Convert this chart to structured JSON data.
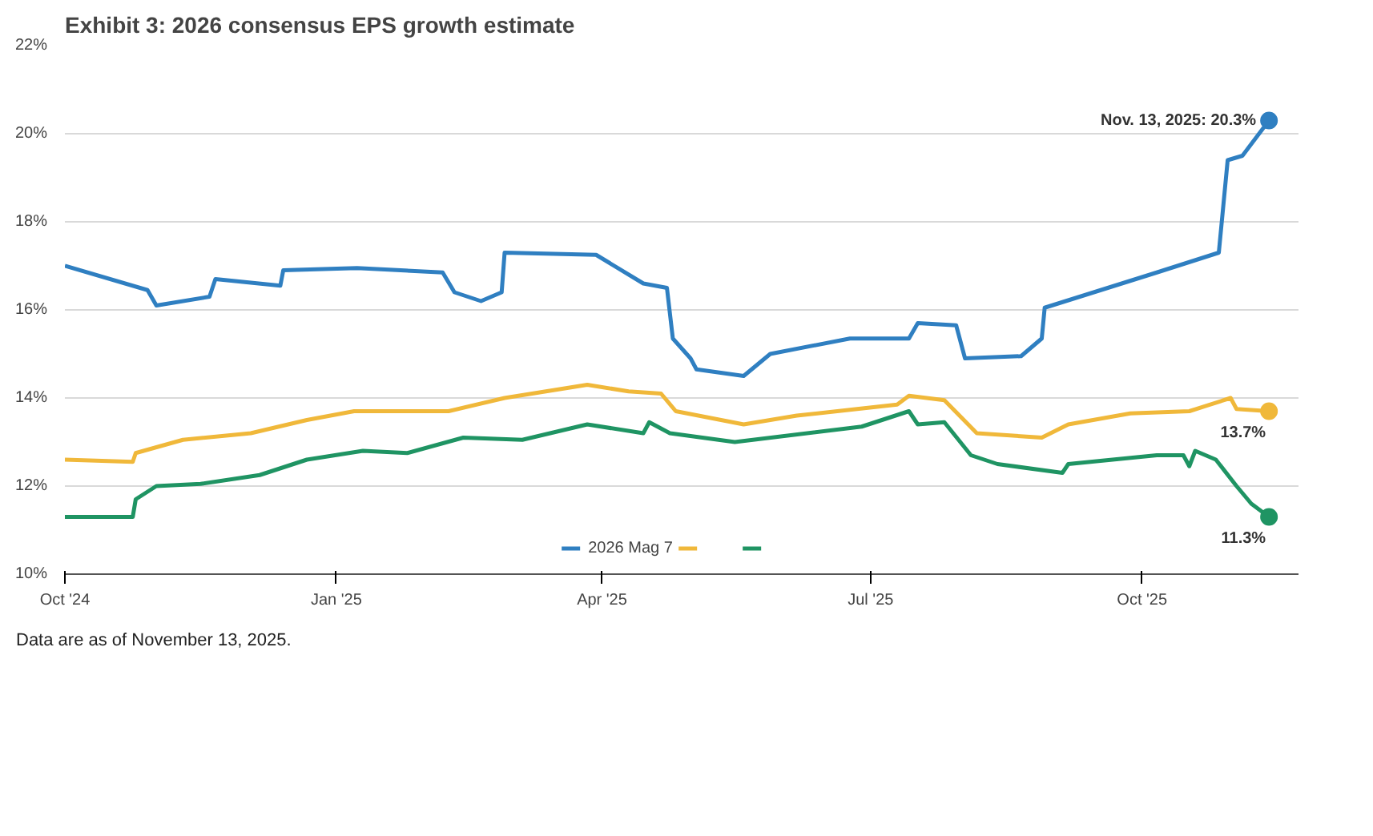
{
  "chart_data": {
    "type": "line",
    "title": "Exhibit 3: 2026 consensus EPS growth estimate",
    "xlim": [
      "2024-10-01",
      "2025-11-23"
    ],
    "xticks": [
      {
        "value": "2024-10-01",
        "label": "Oct '24"
      },
      {
        "value": "2025-01-01",
        "label": "Jan '25"
      },
      {
        "value": "2025-04-01",
        "label": "Apr '25"
      },
      {
        "value": "2025-07-01",
        "label": "Jul '25"
      },
      {
        "value": "2025-10-01",
        "label": "Oct '25"
      }
    ],
    "ylim": [
      10,
      22
    ],
    "yticks": [
      {
        "value": 10,
        "label": "10%"
      },
      {
        "value": 12,
        "label": "12%"
      },
      {
        "value": 14,
        "label": "14%"
      },
      {
        "value": 16,
        "label": "16%"
      },
      {
        "value": 18,
        "label": "18%"
      },
      {
        "value": 20,
        "label": "20%"
      },
      {
        "value": 22,
        "label": "22%"
      }
    ],
    "grid": "y",
    "legend": "bottom",
    "series": [
      {
        "name": "2026 Mag 7",
        "color": "#2f7fc1",
        "x": [
          "2024-10-01",
          "2024-10-29",
          "2024-11-01",
          "2024-11-19",
          "2024-11-21",
          "2024-12-13",
          "2024-12-14",
          "2025-01-08",
          "2025-02-06",
          "2025-02-10",
          "2025-02-19",
          "2025-02-26",
          "2025-02-27",
          "2025-03-30",
          "2025-04-15",
          "2025-04-23",
          "2025-04-25",
          "2025-05-01",
          "2025-05-03",
          "2025-05-19",
          "2025-05-28",
          "2025-06-24",
          "2025-07-14",
          "2025-07-17",
          "2025-07-30",
          "2025-08-02",
          "2025-08-21",
          "2025-08-28",
          "2025-08-29",
          "2025-10-06",
          "2025-10-27",
          "2025-10-30",
          "2025-11-04",
          "2025-11-13"
        ],
        "values": [
          17.0,
          16.45,
          16.1,
          16.3,
          16.7,
          16.55,
          16.9,
          16.95,
          16.85,
          16.4,
          16.2,
          16.4,
          17.3,
          17.25,
          16.6,
          16.5,
          15.35,
          14.9,
          14.65,
          14.5,
          15.0,
          15.35,
          15.35,
          15.7,
          15.65,
          14.9,
          14.95,
          15.35,
          16.05,
          16.85,
          17.3,
          19.4,
          19.5,
          20.3
        ]
      },
      {
        "color": "#f0b83a",
        "x": [
          "2024-10-01",
          "2024-10-24",
          "2024-10-25",
          "2024-11-10",
          "2024-12-03",
          "2024-12-22",
          "2025-01-07",
          "2025-02-08",
          "2025-02-27",
          "2025-03-27",
          "2025-04-10",
          "2025-04-21",
          "2025-04-26",
          "2025-05-19",
          "2025-06-06",
          "2025-07-10",
          "2025-07-14",
          "2025-07-26",
          "2025-08-06",
          "2025-08-28",
          "2025-09-06",
          "2025-09-27",
          "2025-10-17",
          "2025-10-31",
          "2025-11-02",
          "2025-11-13"
        ],
        "values": [
          12.6,
          12.55,
          12.75,
          13.05,
          13.2,
          13.5,
          13.7,
          13.7,
          14.0,
          14.3,
          14.15,
          14.1,
          13.7,
          13.4,
          13.6,
          13.85,
          14.05,
          13.95,
          13.2,
          13.1,
          13.4,
          13.65,
          13.7,
          14.0,
          13.75,
          13.7
        ]
      },
      {
        "color": "#1f9463",
        "x": [
          "2024-10-01",
          "2024-10-24",
          "2024-10-25",
          "2024-11-01",
          "2024-11-16",
          "2024-12-06",
          "2024-12-22",
          "2025-01-10",
          "2025-01-25",
          "2025-02-13",
          "2025-03-05",
          "2025-03-27",
          "2025-04-15",
          "2025-04-17",
          "2025-04-24",
          "2025-05-16",
          "2025-06-28",
          "2025-07-14",
          "2025-07-17",
          "2025-07-26",
          "2025-08-04",
          "2025-08-13",
          "2025-09-04",
          "2025-09-06",
          "2025-10-06",
          "2025-10-15",
          "2025-10-17",
          "2025-10-19",
          "2025-10-26",
          "2025-11-02",
          "2025-11-07",
          "2025-11-13"
        ],
        "values": [
          11.3,
          11.3,
          11.7,
          12.0,
          12.05,
          12.25,
          12.6,
          12.8,
          12.75,
          13.1,
          13.05,
          13.4,
          13.2,
          13.45,
          13.2,
          13.0,
          13.35,
          13.7,
          13.4,
          13.45,
          12.7,
          12.5,
          12.3,
          12.5,
          12.7,
          12.7,
          12.45,
          12.8,
          12.6,
          12.0,
          11.6,
          11.3
        ]
      }
    ],
    "annotations": [
      {
        "text": "Nov. 13, 2025: 20.3%",
        "x": "2025-11-13",
        "y": 20.3
      },
      {
        "text": "13.7%",
        "x": "2025-11-13",
        "y": 13.7
      },
      {
        "text": "11.3%",
        "x": "2025-11-13",
        "y": 11.3
      },
      "Data are as of November 13, 2025."
    ]
  }
}
